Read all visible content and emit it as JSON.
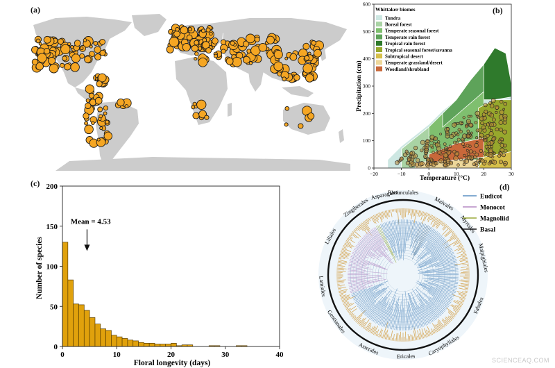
{
  "labels": {
    "a": "(a)",
    "b": "(b)",
    "c": "(c)",
    "d": "(d)"
  },
  "watermark": "SCIENCEAQ.COM",
  "map": {
    "land_color": "#cccccc",
    "point_color": "#f5a623",
    "point_stroke": "#1a1a1a"
  },
  "biome_chart": {
    "type": "area",
    "xlabel": "Temperature (°C)",
    "ylabel": "Precipitation (cm)",
    "xlim": [
      -20,
      30
    ],
    "ylim": [
      0,
      600
    ],
    "xticks": [
      -20,
      -10,
      0,
      10,
      20,
      30
    ],
    "yticks": [
      0,
      100,
      200,
      300,
      400,
      500,
      600
    ],
    "legend_title": "Whittaker biomes",
    "legend_position": "top-left",
    "legend": [
      {
        "name": "Tundra",
        "color": "#cde7e2"
      },
      {
        "name": "Boreal forest",
        "color": "#a9d3a4"
      },
      {
        "name": "Temperate seasonal forest",
        "color": "#7fbf6f"
      },
      {
        "name": "Temperate rain forest",
        "color": "#5ea35a"
      },
      {
        "name": "Tropical rain forest",
        "color": "#2f7a2c"
      },
      {
        "name": "Tropical seasonal forest/savanna",
        "color": "#97a82c"
      },
      {
        "name": "Subtropical desert",
        "color": "#d7c04a"
      },
      {
        "name": "Temperate grassland/desert",
        "color": "#edd79a"
      },
      {
        "name": "Woodland/shrubland",
        "color": "#c9683a"
      }
    ]
  },
  "chart_data": {
    "type": "bar",
    "xlabel": "Floral longevity (days)",
    "ylabel": "Number of species",
    "xlim": [
      0,
      40
    ],
    "ylim": [
      0,
      200
    ],
    "xticks": [
      0,
      10,
      20,
      30,
      40
    ],
    "yticks": [
      0,
      50,
      100,
      150,
      200
    ],
    "bin_width": 1,
    "bin_starts": [
      0,
      1,
      2,
      3,
      4,
      5,
      6,
      7,
      8,
      9,
      10,
      11,
      12,
      13,
      14,
      15,
      16,
      17,
      18,
      19,
      20,
      21,
      22,
      23,
      27,
      28,
      32,
      33
    ],
    "values": [
      130,
      83,
      53,
      52,
      45,
      36,
      28,
      22,
      20,
      14,
      12,
      10,
      8,
      7,
      5,
      4,
      4,
      3,
      3,
      3,
      4,
      1,
      2,
      2,
      1,
      1,
      1,
      1
    ],
    "annotation": "Mean = 4.53",
    "annotation_x": 4.53,
    "bar_color": "#e0a10c"
  },
  "tree": {
    "orders": [
      "Ranunculales",
      "Malvales",
      "Myrtales",
      "Malpighiales",
      "Fabales",
      "Caryophyllales",
      "Ericales",
      "Asterales",
      "Gentianales",
      "Lamiales",
      "Liliales",
      "Zingiberales",
      "Asparagales"
    ],
    "legend": [
      {
        "name": "Eudicot",
        "color": "#5b8fc2"
      },
      {
        "name": "Monocot",
        "color": "#b58ac4"
      },
      {
        "name": "Magnoliid",
        "color": "#9aaa3a"
      },
      {
        "name": "Basal",
        "color": "#1a1a1a"
      }
    ]
  }
}
